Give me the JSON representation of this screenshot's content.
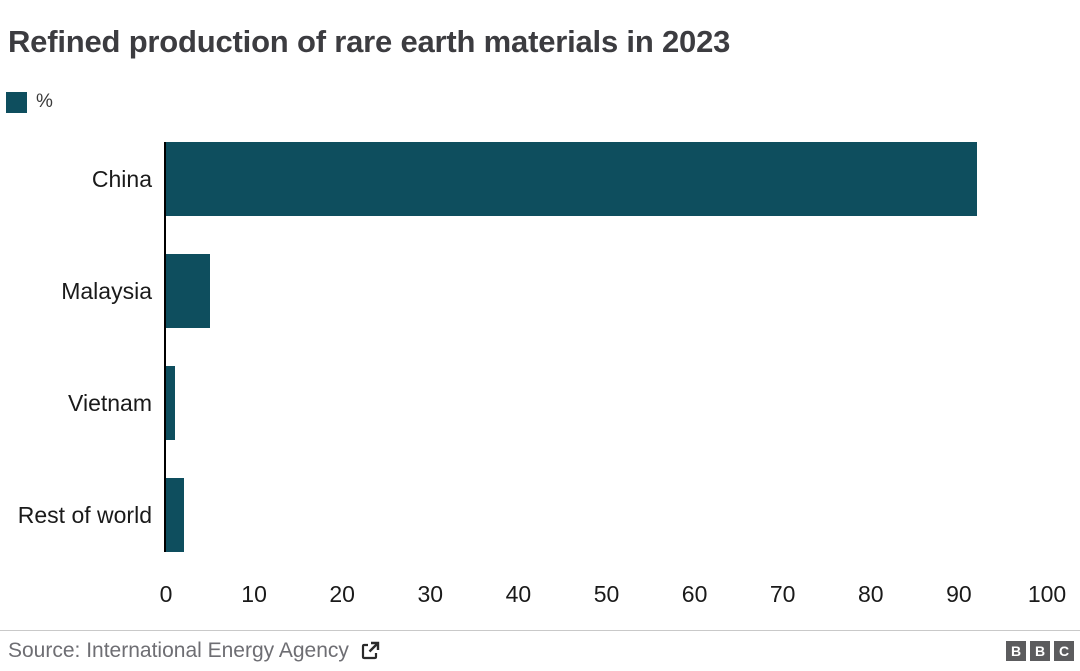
{
  "title": "Refined production of rare earth materials in 2023",
  "legend": {
    "label": "%",
    "swatch_color": "#0e4e5e"
  },
  "chart_data": {
    "type": "bar",
    "orientation": "horizontal",
    "title": "Refined production of rare earth materials in 2023",
    "categories": [
      "China",
      "Malaysia",
      "Vietnam",
      "Rest of world"
    ],
    "values": [
      92,
      5,
      1,
      2
    ],
    "unit": "%",
    "xlabel": "",
    "ylabel": "",
    "xlim": [
      0,
      100
    ],
    "xticks": [
      0,
      10,
      20,
      30,
      40,
      50,
      60,
      70,
      80,
      90,
      100
    ],
    "grid": false,
    "legend_entries": [
      "%"
    ],
    "legend_position": "top-left",
    "bar_color": "#0e4e5e"
  },
  "footer": {
    "source": "Source: International Energy Agency",
    "external_link_icon": "external-link",
    "logo_letters": [
      "B",
      "B",
      "C"
    ]
  },
  "colors": {
    "bar": "#0e4e5e",
    "title_text": "#3c3c40",
    "axis_text": "#1a1a1a",
    "axis_line": "#000000",
    "source_text": "#6e6e73",
    "footer_rule": "#c9c9c9",
    "logo_block_bg": "#5c5c5e",
    "logo_letter": "#ffffff",
    "background": "#ffffff"
  }
}
